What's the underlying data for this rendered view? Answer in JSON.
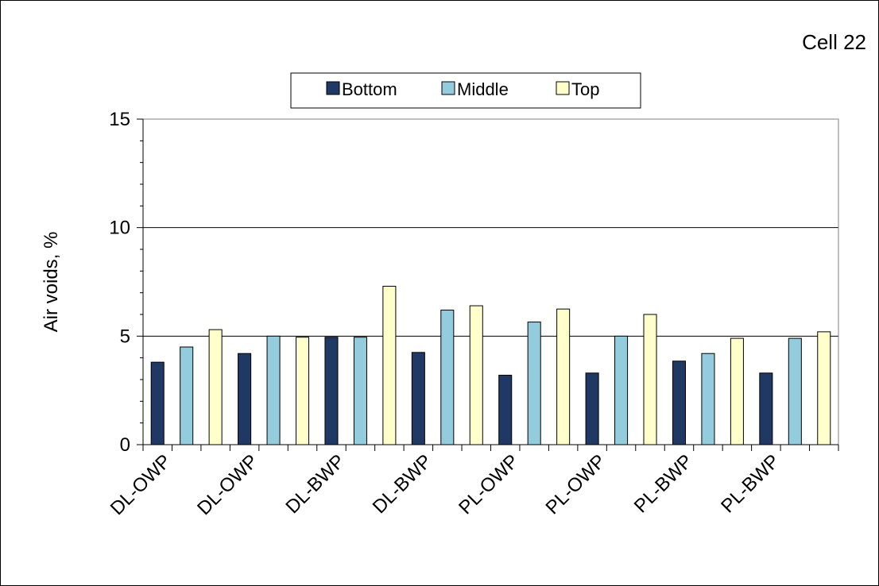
{
  "chart_data": {
    "type": "bar",
    "title": "Cell 22",
    "ylabel": "Air voids, %",
    "xlabel": "",
    "ylim": [
      0,
      15
    ],
    "yticks": [
      0,
      5,
      10,
      15
    ],
    "grid": true,
    "legend_position": "top",
    "category_labels": [
      "DL-OWP",
      "DL-OWP",
      "DL-BWP",
      "DL-BWP",
      "PL-OWP",
      "PL-OWP",
      "PL-BWP",
      "PL-BWP"
    ],
    "series": [
      {
        "name": "Bottom",
        "color": "#1F3864",
        "values": [
          3.8,
          4.2,
          4.95,
          4.25,
          3.2,
          3.3,
          3.85,
          3.3
        ]
      },
      {
        "name": "Middle",
        "color": "#93CCDD",
        "values": [
          4.5,
          5.0,
          4.95,
          6.2,
          5.65,
          5.0,
          4.2,
          4.9
        ]
      },
      {
        "name": "Top",
        "color": "#FFFFCC",
        "values": [
          5.3,
          4.95,
          7.3,
          6.4,
          6.25,
          6.0,
          4.9,
          5.2
        ]
      }
    ]
  }
}
